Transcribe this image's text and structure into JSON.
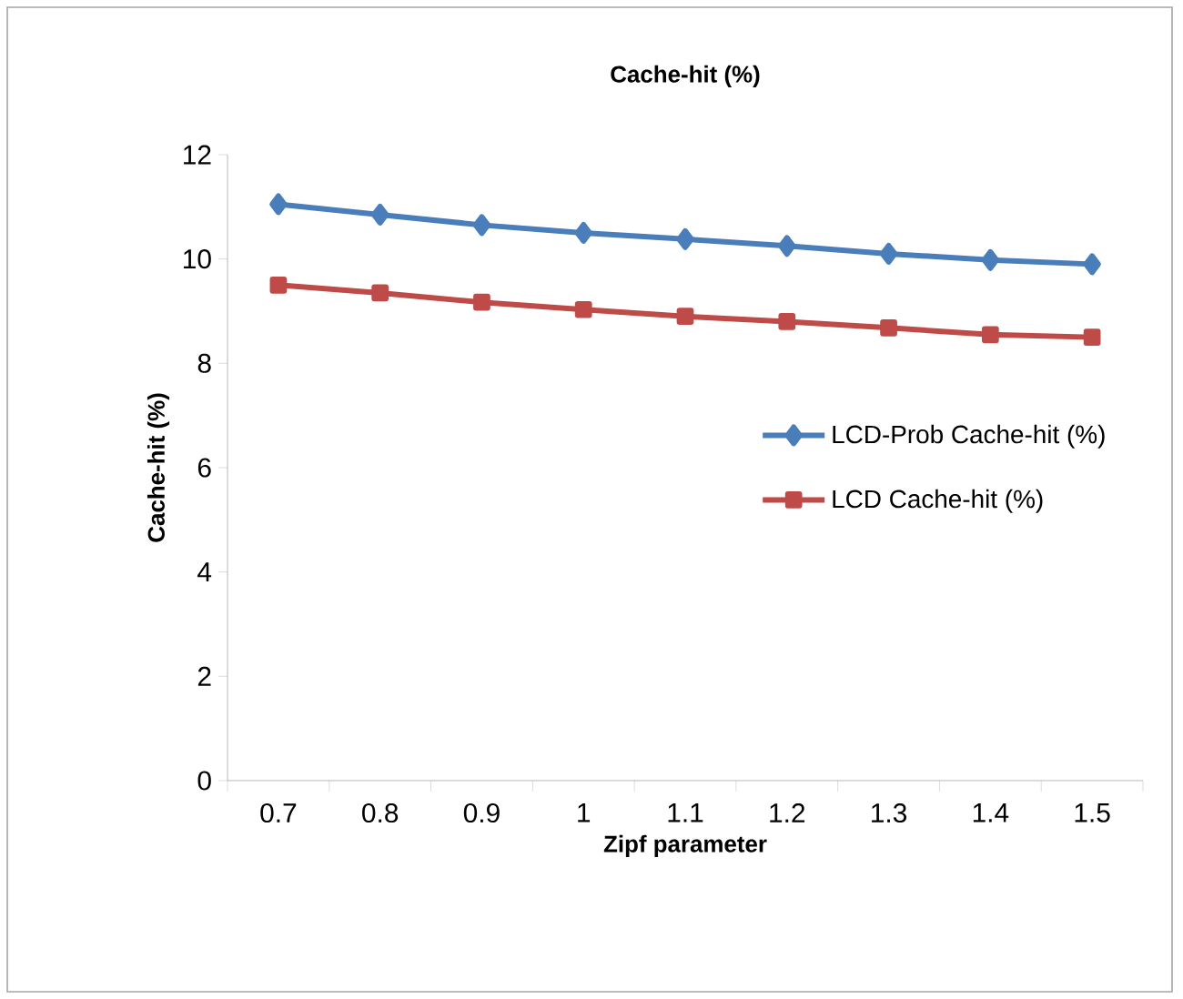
{
  "chart_data": {
    "type": "line",
    "title": "Cache-hit (%)",
    "xlabel": "Zipf   parameter",
    "ylabel": "Cache-hit (%)",
    "categories": [
      "0.7",
      "0.8",
      "0.9",
      "1",
      "1.1",
      "1.2",
      "1.3",
      "1.4",
      "1.5"
    ],
    "series": [
      {
        "name": "LCD-Prob Cache-hit (%)",
        "color": "#4a7ebb",
        "marker": "diamond",
        "values": [
          11.05,
          10.85,
          10.65,
          10.5,
          10.38,
          10.25,
          10.1,
          9.98,
          9.9
        ]
      },
      {
        "name": "LCD Cache-hit (%)",
        "color": "#be4b48",
        "marker": "square",
        "values": [
          9.5,
          9.35,
          9.17,
          9.03,
          8.9,
          8.8,
          8.68,
          8.55,
          8.5
        ]
      }
    ],
    "ylim": [
      0,
      12
    ],
    "yticks": [
      0,
      2,
      4,
      6,
      8,
      10,
      12
    ],
    "grid": false,
    "legend": "right"
  }
}
